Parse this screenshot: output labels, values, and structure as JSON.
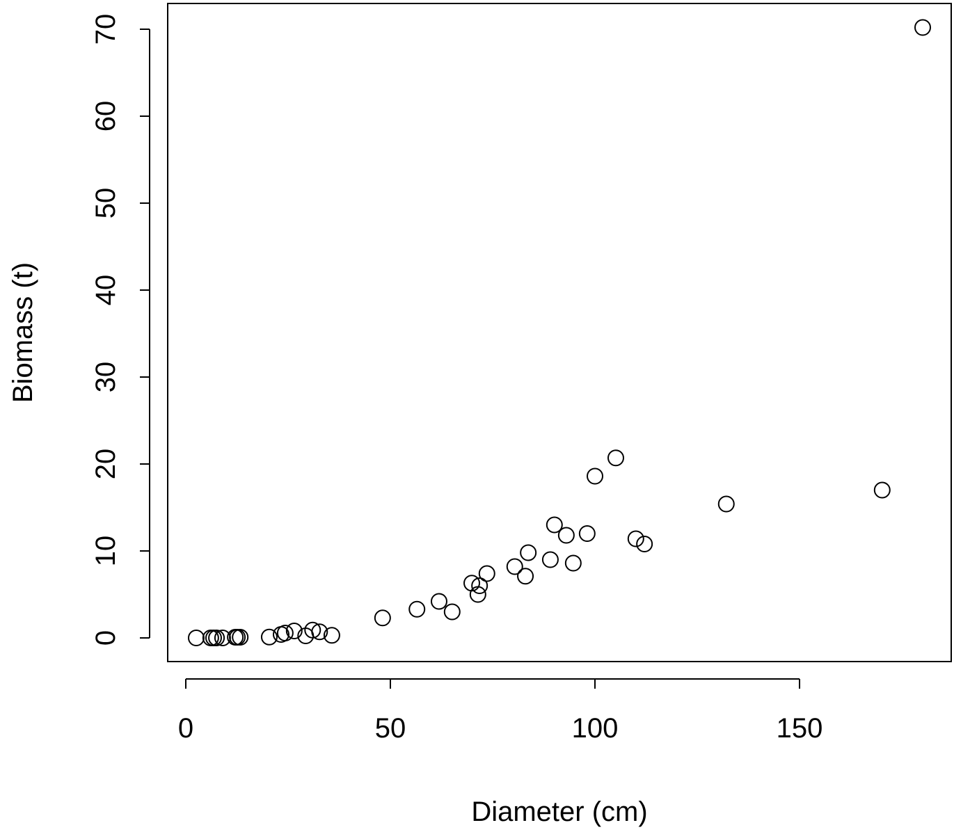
{
  "chart_data": {
    "type": "scatter",
    "x_label": "Diameter (cm)",
    "y_label": "Biomass (t)",
    "x": [
      2.55,
      6.1,
      6.8,
      7.5,
      9.0,
      12.1,
      12.6,
      13.3,
      20.4,
      23.3,
      24.3,
      26.5,
      29.3,
      31.0,
      32.7,
      35.7,
      48.1,
      56.5,
      61.9,
      65.1,
      69.9,
      71.8,
      71.4,
      73.6,
      80.4,
      83.0,
      83.7,
      89.1,
      90.1,
      93.0,
      94.7,
      98.1,
      100,
      105.1,
      110.0,
      112.1,
      132.1,
      170.2,
      180.1
    ],
    "values": [
      0,
      0,
      0,
      0,
      0,
      0.08,
      0.08,
      0.08,
      0.1,
      0.4,
      0.56,
      0.8,
      0.24,
      0.9,
      0.7,
      0.3,
      2.3,
      3.3,
      4.2,
      3.0,
      6.3,
      6.0,
      5.0,
      7.4,
      8.2,
      7.1,
      9.8,
      9.0,
      13.0,
      11.8,
      8.6,
      12.0,
      18.6,
      20.7,
      11.4,
      10.8,
      15.4,
      17.0,
      70.2
    ],
    "color": "#000000",
    "xlim": [
      -4.42,
      187.07
    ],
    "ylim": [
      -2.72,
      72.96
    ],
    "xticks": [
      0,
      50,
      100,
      150
    ],
    "yticks": [
      0,
      10,
      20,
      30,
      40,
      50,
      60,
      70
    ]
  }
}
